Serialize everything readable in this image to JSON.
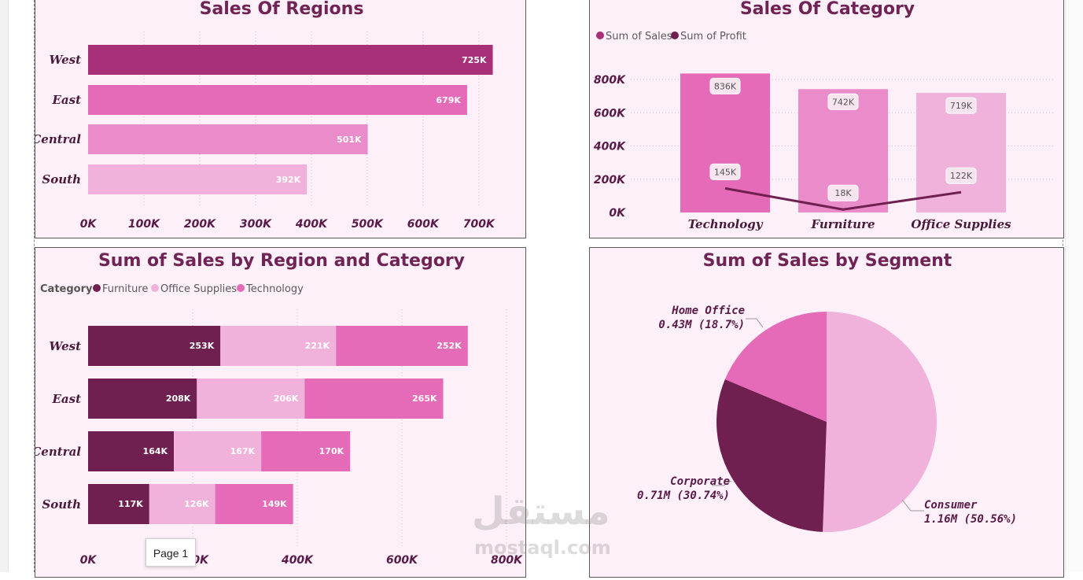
{
  "watermark": {
    "arabic": "مستقل",
    "latin": "mostaql.com"
  },
  "tooltip": {
    "text": "Page 1"
  },
  "colors": {
    "background": "#fdf0f8",
    "title": "#702456",
    "dark": "#702050",
    "pink_mid": "#e56ab8",
    "pink_light": "#f0b2da",
    "pink_medium": "#ea8cca",
    "pink_deep": "#a83078"
  },
  "chart_data": [
    {
      "type": "bar",
      "orientation": "horizontal",
      "title": "Sales Of Regions",
      "categories": [
        "West",
        "East",
        "Central",
        "South"
      ],
      "values": [
        725,
        679,
        501,
        392
      ],
      "value_labels": [
        "725K",
        "679K",
        "501K",
        "392K"
      ],
      "bar_colors": [
        "#a83078",
        "#e56ab8",
        "#ea8cca",
        "#f0b2da"
      ],
      "xlim": [
        0,
        720
      ],
      "x_ticks": [
        "0K",
        "100K",
        "200K",
        "300K",
        "400K",
        "500K",
        "600K",
        "700K"
      ],
      "grid": true
    },
    {
      "type": "bar",
      "subtype": "column-and-line",
      "title": "Sales Of Category",
      "categories": [
        "Technology",
        "Furniture",
        "Office Supplies"
      ],
      "series": [
        {
          "name": "Sum of Sales",
          "type": "column",
          "values": [
            836,
            742,
            719
          ],
          "labels": [
            "836K",
            "742K",
            "719K"
          ],
          "color": "#a83078"
        },
        {
          "name": "Sum of Profit",
          "type": "line",
          "values": [
            145,
            18,
            122
          ],
          "labels": [
            "145K",
            "18K",
            "122K"
          ],
          "color": "#702050"
        }
      ],
      "bar_colors": [
        "#e56ab8",
        "#ea8cca",
        "#f0b2da"
      ],
      "ylim": [
        0,
        800
      ],
      "y_ticks": [
        "0K",
        "200K",
        "400K",
        "600K",
        "800K"
      ],
      "legend_placement": "top-left",
      "grid": true
    },
    {
      "type": "bar",
      "subtype": "stacked-horizontal",
      "title": "Sum of Sales by Region and Category",
      "legend_title": "Category",
      "categories": [
        "West",
        "East",
        "Central",
        "South"
      ],
      "series": [
        {
          "name": "Furniture",
          "values": [
            253,
            208,
            164,
            117
          ],
          "labels": [
            "253K",
            "208K",
            "164K",
            "117K"
          ],
          "color": "#702050"
        },
        {
          "name": "Office Supplies",
          "values": [
            221,
            206,
            167,
            126
          ],
          "labels": [
            "221K",
            "206K",
            "167K",
            "126K"
          ],
          "color": "#f0b2da"
        },
        {
          "name": "Technology",
          "values": [
            252,
            265,
            170,
            149
          ],
          "labels": [
            "252K",
            "265K",
            "170K",
            "149K"
          ],
          "color": "#e56ab8"
        }
      ],
      "xlim": [
        0,
        800
      ],
      "x_ticks": [
        "0K",
        "200K",
        "400K",
        "600K",
        "800K"
      ],
      "legend_placement": "top-left",
      "grid": true
    },
    {
      "type": "pie",
      "title": "Sum of Sales by Segment",
      "slices": [
        {
          "name": "Consumer",
          "value": 50.56,
          "label": "1.16M (50.56%)",
          "color": "#f0b2da"
        },
        {
          "name": "Corporate",
          "value": 30.74,
          "label": "0.71M (30.74%)",
          "color": "#702050"
        },
        {
          "name": "Home Office",
          "value": 18.7,
          "label": "0.43M (18.7%)",
          "color": "#e56ab8"
        }
      ]
    }
  ]
}
